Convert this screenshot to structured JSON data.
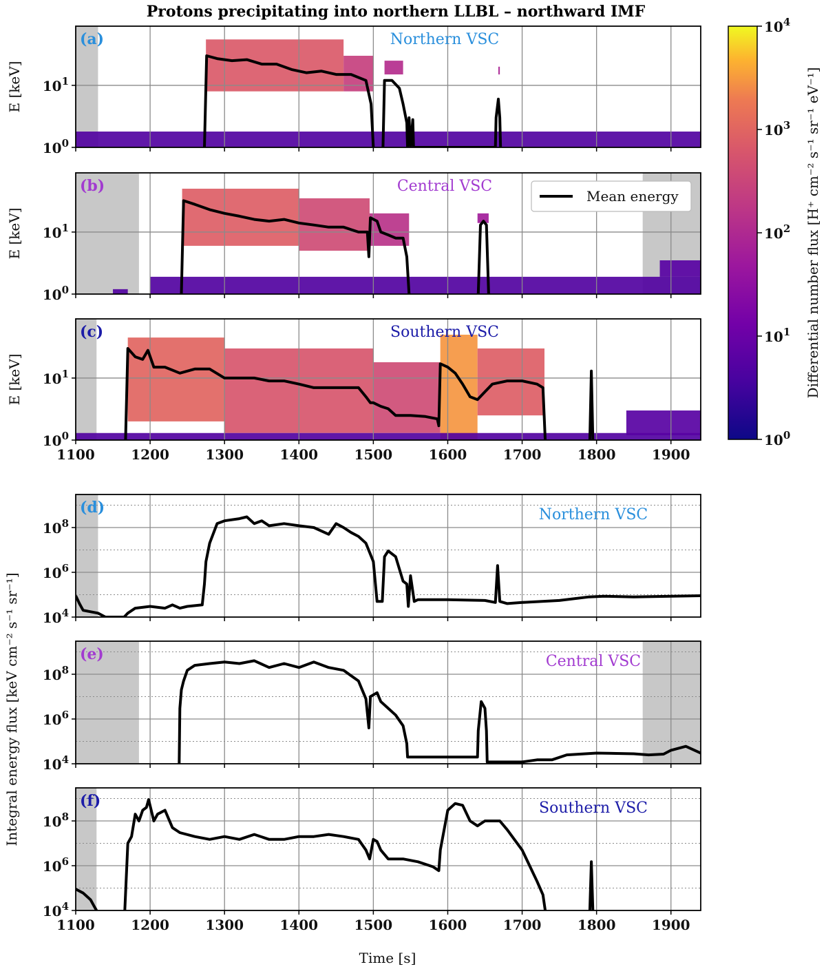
{
  "title": "Protons precipitating into northern LLBL – northward IMF",
  "colors": {
    "northern": "#2a8fdc",
    "central": "#a23bd0",
    "southern": "#1c1ca8",
    "gray_band": "#c8c8c8",
    "mean_line": "#000000"
  },
  "colorbar": {
    "label": "Differential number flux [H⁺ cm⁻² s⁻¹ sr⁻¹ eV⁻¹]",
    "ticks": [
      {
        "base": "10",
        "exp": "0"
      },
      {
        "base": "10",
        "exp": "1"
      },
      {
        "base": "10",
        "exp": "2"
      },
      {
        "base": "10",
        "exp": "3"
      },
      {
        "base": "10",
        "exp": "4"
      }
    ],
    "range": [
      1,
      10000
    ],
    "colormap": "plasma"
  },
  "time_axis": {
    "label": "Time [s]",
    "range": [
      1100,
      1940
    ],
    "ticks": [
      "1100",
      "1200",
      "1300",
      "1400",
      "1500",
      "1600",
      "1700",
      "1800",
      "1900"
    ]
  },
  "spectro_axis": {
    "label": "E [keV]",
    "ticks": [
      {
        "base": "10",
        "exp": "0"
      },
      {
        "base": "10",
        "exp": "1"
      }
    ],
    "range_keV": [
      1,
      90
    ]
  },
  "flux_axis": {
    "label": "Integral energy flux [keV cm⁻² s⁻¹ sr⁻¹]",
    "ticks": [
      {
        "base": "10",
        "exp": "4"
      },
      {
        "base": "10",
        "exp": "6"
      },
      {
        "base": "10",
        "exp": "8"
      }
    ],
    "range": [
      10000,
      3000000000
    ]
  },
  "legend": {
    "mean_energy": "Mean energy"
  },
  "panels": [
    {
      "id": "a",
      "letter": "(a)",
      "vsc": "Northern VSC",
      "color_key": "northern"
    },
    {
      "id": "b",
      "letter": "(b)",
      "vsc": "Central VSC",
      "color_key": "central"
    },
    {
      "id": "c",
      "letter": "(c)",
      "vsc": "Southern VSC",
      "color_key": "southern"
    },
    {
      "id": "d",
      "letter": "(d)",
      "vsc": "Northern VSC",
      "color_key": "northern"
    },
    {
      "id": "e",
      "letter": "(e)",
      "vsc": "Central VSC",
      "color_key": "central"
    },
    {
      "id": "f",
      "letter": "(f)",
      "vsc": "Southern VSC",
      "color_key": "southern"
    }
  ],
  "chart_data": [
    {
      "type": "heatmap",
      "panel": "a",
      "title": "Northern VSC",
      "xlabel": "Time [s]",
      "ylabel": "E [keV]",
      "xlim": [
        1100,
        1940
      ],
      "ylim_keV": [
        1,
        90
      ],
      "gray_bands": [
        [
          1100,
          1130
        ]
      ],
      "regions": [
        {
          "t0": 1100,
          "t1": 1940,
          "e_lo": 1.0,
          "e_hi": 1.8,
          "flux": 5
        },
        {
          "t0": 1275,
          "t1": 1460,
          "e_lo": 8,
          "e_hi": 55,
          "flux": 700
        },
        {
          "t0": 1460,
          "t1": 1500,
          "e_lo": 8,
          "e_hi": 30,
          "flux": 250
        },
        {
          "t0": 1515,
          "t1": 1540,
          "e_lo": 15,
          "e_hi": 25,
          "flux": 120
        },
        {
          "t0": 1668,
          "t1": 1670,
          "e_lo": 15,
          "e_hi": 20,
          "flux": 80
        }
      ],
      "mean_energy": {
        "name": "Mean energy",
        "t": [
          1100,
          1272,
          1273,
          1276,
          1290,
          1310,
          1330,
          1350,
          1370,
          1390,
          1410,
          1430,
          1450,
          1470,
          1490,
          1497,
          1500,
          1501,
          1512,
          1513,
          1515,
          1525,
          1535,
          1540,
          1545,
          1546,
          1548,
          1550,
          1553,
          1554,
          1664,
          1665,
          1668,
          1670,
          1671,
          1940
        ],
        "e": [
          null,
          null,
          1.0,
          30,
          27,
          25,
          26,
          22,
          22,
          18,
          16,
          17,
          15,
          15,
          12,
          5,
          1.0,
          null,
          null,
          1.0,
          12,
          12,
          9,
          5,
          2.5,
          1.0,
          3,
          1.0,
          2.8,
          1.0,
          1.0,
          3,
          6,
          3,
          1.0,
          null
        ]
      }
    },
    {
      "type": "heatmap",
      "panel": "b",
      "title": "Central VSC",
      "xlabel": "Time [s]",
      "ylabel": "E [keV]",
      "xlim": [
        1100,
        1940
      ],
      "ylim_keV": [
        1,
        90
      ],
      "gray_bands": [
        [
          1100,
          1185
        ],
        [
          1862,
          1940
        ]
      ],
      "regions": [
        {
          "t0": 1200,
          "t1": 1940,
          "e_lo": 1.0,
          "e_hi": 1.9,
          "flux": 5
        },
        {
          "t0": 1150,
          "t1": 1170,
          "e_lo": 1.0,
          "e_hi": 1.2,
          "flux": 5
        },
        {
          "t0": 1243,
          "t1": 1400,
          "e_lo": 6,
          "e_hi": 50,
          "flux": 800
        },
        {
          "t0": 1400,
          "t1": 1495,
          "e_lo": 5,
          "e_hi": 35,
          "flux": 400
        },
        {
          "t0": 1495,
          "t1": 1548,
          "e_lo": 6,
          "e_hi": 20,
          "flux": 150
        },
        {
          "t0": 1640,
          "t1": 1655,
          "e_lo": 14,
          "e_hi": 20,
          "flux": 60
        },
        {
          "t0": 1885,
          "t1": 1940,
          "e_lo": 1.9,
          "e_hi": 3.5,
          "flux": 6
        }
      ],
      "mean_energy": {
        "name": "Mean energy",
        "t": [
          1100,
          1241,
          1242,
          1245,
          1260,
          1280,
          1300,
          1320,
          1340,
          1360,
          1380,
          1400,
          1420,
          1440,
          1460,
          1480,
          1492,
          1494,
          1496,
          1505,
          1510,
          1520,
          1530,
          1540,
          1545,
          1548,
          1549,
          1640,
          1641,
          1644,
          1648,
          1652,
          1655,
          1656,
          1940
        ],
        "e": [
          null,
          null,
          1.0,
          32,
          28,
          23,
          20,
          18,
          16,
          15,
          16,
          14,
          13,
          12,
          12,
          10,
          10,
          4,
          17,
          15,
          10,
          9,
          8,
          8,
          4,
          1.0,
          null,
          null,
          1.0,
          13,
          15,
          13,
          1.0,
          null,
          null
        ]
      }
    },
    {
      "type": "heatmap",
      "panel": "c",
      "title": "Southern VSC",
      "xlabel": "Time [s]",
      "ylabel": "E [keV]",
      "xlim": [
        1100,
        1940
      ],
      "ylim_keV": [
        1,
        90
      ],
      "gray_bands": [
        [
          1100,
          1128
        ]
      ],
      "regions": [
        {
          "t0": 1170,
          "t1": 1300,
          "e_lo": 2,
          "e_hi": 45,
          "flux": 1000
        },
        {
          "t0": 1300,
          "t1": 1500,
          "e_lo": 1.3,
          "e_hi": 30,
          "flux": 600
        },
        {
          "t0": 1500,
          "t1": 1590,
          "e_lo": 1.3,
          "e_hi": 18,
          "flux": 400
        },
        {
          "t0": 1590,
          "t1": 1640,
          "e_lo": 1.0,
          "e_hi": 50,
          "flux": 3000
        },
        {
          "t0": 1640,
          "t1": 1730,
          "e_lo": 2.5,
          "e_hi": 30,
          "flux": 800
        },
        {
          "t0": 1100,
          "t1": 1940,
          "e_lo": 1.0,
          "e_hi": 1.3,
          "flux": 5
        },
        {
          "t0": 1840,
          "t1": 1940,
          "e_lo": 1.2,
          "e_hi": 3.0,
          "flux": 6
        }
      ],
      "mean_energy": {
        "name": "Mean energy",
        "t": [
          1100,
          1166,
          1167,
          1170,
          1180,
          1190,
          1197,
          1205,
          1220,
          1240,
          1260,
          1280,
          1300,
          1320,
          1340,
          1360,
          1380,
          1400,
          1420,
          1440,
          1460,
          1480,
          1490,
          1496,
          1500,
          1510,
          1520,
          1530,
          1550,
          1570,
          1586,
          1588,
          1590,
          1600,
          1610,
          1620,
          1630,
          1640,
          1650,
          1660,
          1680,
          1700,
          1720,
          1728,
          1731,
          1732,
          1790,
          1791,
          1793,
          1795,
          1796,
          1940
        ],
        "e": [
          null,
          null,
          1.0,
          30,
          22,
          20,
          28,
          15,
          15,
          12,
          14,
          14,
          10,
          10,
          10,
          9,
          9,
          8,
          7,
          7,
          7,
          7,
          5,
          4,
          4,
          3.5,
          3.2,
          2.5,
          2.5,
          2.4,
          2.2,
          1.7,
          17,
          15,
          12,
          8,
          5,
          4.5,
          6,
          8,
          9,
          9,
          8,
          7,
          1.0,
          null,
          null,
          1.0,
          13,
          1.0,
          null,
          null
        ]
      }
    },
    {
      "type": "line",
      "panel": "d",
      "title": "Northern VSC",
      "xlabel": "Time [s]",
      "ylabel": "Integral energy flux [keV cm⁻² s⁻¹ sr⁻¹]",
      "xlim": [
        1100,
        1940
      ],
      "ylim": [
        10000,
        3000000000
      ],
      "gray_bands": [
        [
          1100,
          1130
        ]
      ],
      "series": [
        {
          "name": "Integral energy flux",
          "t": [
            1100,
            1105,
            1110,
            1130,
            1140,
            1165,
            1170,
            1180,
            1200,
            1220,
            1230,
            1240,
            1250,
            1270,
            1273,
            1275,
            1280,
            1290,
            1300,
            1320,
            1330,
            1340,
            1350,
            1360,
            1380,
            1400,
            1420,
            1440,
            1450,
            1460,
            1470,
            1480,
            1490,
            1500,
            1505,
            1512,
            1515,
            1520,
            1530,
            1540,
            1545,
            1547,
            1550,
            1555,
            1560,
            1600,
            1650,
            1664,
            1667,
            1670,
            1680,
            1700,
            1750,
            1790,
            1810,
            1850,
            1900,
            1940
          ],
          "values": [
            90000,
            40000,
            20000,
            15000,
            10000,
            10000,
            15000,
            25000,
            30000,
            25000,
            35000,
            25000,
            30000,
            35000,
            300000,
            3000000,
            20000000,
            150000000,
            200000000,
            250000000,
            300000000,
            150000000,
            200000000,
            120000000,
            150000000,
            120000000,
            100000000,
            50000000,
            150000000,
            100000000,
            60000000,
            40000000,
            20000000,
            3000000,
            50000,
            50000,
            5000000,
            9000000,
            5000000,
            400000,
            300000,
            30000,
            700000,
            50000,
            60000,
            60000,
            55000,
            45000,
            2000000,
            50000,
            40000,
            45000,
            55000,
            80000,
            85000,
            80000,
            85000,
            90000
          ]
        }
      ]
    },
    {
      "type": "line",
      "panel": "e",
      "title": "Central VSC",
      "xlabel": "Time [s]",
      "ylabel": "Integral energy flux [keV cm⁻² s⁻¹ sr⁻¹]",
      "xlim": [
        1100,
        1940
      ],
      "ylim": [
        10000,
        3000000000
      ],
      "gray_bands": [
        [
          1100,
          1185
        ],
        [
          1862,
          1940
        ]
      ],
      "series": [
        {
          "name": "Integral energy flux",
          "t": [
            1239,
            1240,
            1242,
            1245,
            1250,
            1260,
            1280,
            1300,
            1320,
            1340,
            1360,
            1380,
            1400,
            1420,
            1440,
            1460,
            1480,
            1490,
            1494,
            1496,
            1505,
            1510,
            1520,
            1530,
            1540,
            1545,
            1546,
            1560,
            1600,
            1640,
            1641,
            1645,
            1650,
            1652,
            1653,
            1700,
            1720,
            1740,
            1760,
            1800,
            1850,
            1870,
            1890,
            1900,
            1920,
            1940
          ],
          "values": [
            10000,
            3000000,
            20000000,
            50000000,
            150000000,
            250000000,
            300000000,
            350000000,
            300000000,
            400000000,
            200000000,
            300000000,
            200000000,
            350000000,
            200000000,
            150000000,
            50000000,
            8000000,
            400000,
            10000000,
            15000000,
            6000000,
            3000000,
            1500000,
            500000,
            80000,
            20000,
            20000,
            20000,
            20000,
            300000,
            6000000,
            3000000,
            300000,
            12000,
            12000,
            15000,
            15000,
            25000,
            30000,
            28000,
            25000,
            27000,
            40000,
            60000,
            30000
          ]
        }
      ]
    },
    {
      "type": "line",
      "panel": "f",
      "title": "Southern VSC",
      "xlabel": "Time [s]",
      "ylabel": "Integral energy flux [keV cm⁻² s⁻¹ sr⁻¹]",
      "xlim": [
        1100,
        1940
      ],
      "ylim": [
        10000,
        3000000000
      ],
      "gray_bands": [
        [
          1100,
          1128
        ]
      ],
      "series": [
        {
          "name": "Integral energy flux",
          "t": [
            1100,
            1110,
            1120,
            1125,
            1128,
            1165,
            1166,
            1170,
            1175,
            1180,
            1185,
            1190,
            1195,
            1198,
            1205,
            1210,
            1220,
            1230,
            1240,
            1260,
            1280,
            1300,
            1320,
            1340,
            1360,
            1380,
            1400,
            1420,
            1440,
            1460,
            1480,
            1490,
            1495,
            1500,
            1505,
            1510,
            1520,
            1540,
            1560,
            1580,
            1588,
            1590,
            1600,
            1610,
            1620,
            1630,
            1640,
            1650,
            1660,
            1670,
            1680,
            1700,
            1720,
            1728,
            1731,
            1790,
            1791,
            1793,
            1795,
            1796,
            1800,
            1810,
            1830,
            1840,
            1850,
            1870,
            1900,
            1940
          ],
          "values": [
            90000,
            60000,
            30000,
            15000,
            10000,
            null,
            10000,
            10000000,
            20000000,
            200000000,
            100000000,
            300000000,
            400000000,
            900000000,
            100000000,
            200000000,
            300000000,
            50000000,
            30000000,
            20000000,
            15000000,
            20000000,
            15000000,
            25000000,
            15000000,
            15000000,
            20000000,
            20000000,
            25000000,
            20000000,
            15000000,
            5000000,
            2000000,
            15000000,
            12000000,
            5000000,
            2000000,
            2000000,
            1500000,
            900000,
            600000,
            5000000,
            300000000,
            600000000,
            500000000,
            100000000,
            60000000,
            100000000,
            100000000,
            100000000,
            40000000,
            5000000,
            200000,
            50000,
            10000,
            null,
            10000,
            1500000,
            10000,
            null,
            null,
            null,
            null,
            null,
            null,
            null,
            null,
            null
          ]
        }
      ]
    }
  ]
}
